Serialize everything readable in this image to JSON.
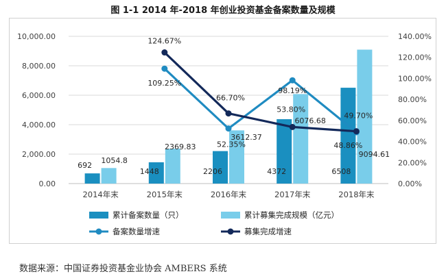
{
  "title": "图 1-1 2014 年-2018 年创业投资基金备案数量及规模",
  "source": "数据来源：中国证券投资基金业协会 AMBERS 系统",
  "colors": {
    "count_bar": "#1a8fc0",
    "scale_bar": "#79cdea",
    "count_growth": "#1f8bc1",
    "scale_growth": "#13295a",
    "grid": "#d9d9d9",
    "axis": "#bfbfbf"
  },
  "chart_data": {
    "type": "bar",
    "categories": [
      "2014年末",
      "2015年末",
      "2016年末",
      "2017年末",
      "2018年末"
    ],
    "left_axis": {
      "ylim": [
        0,
        10000
      ],
      "ticks": [
        "0.00",
        "2,000.00",
        "4,000.00",
        "6,000.00",
        "8,000.00",
        "10,000.00"
      ]
    },
    "right_axis": {
      "ylim": [
        0,
        140
      ],
      "unit": "%",
      "ticks": [
        "0.00%",
        "20.00%",
        "40.00%",
        "60.00%",
        "80.00%",
        "100.00%",
        "120.00%",
        "140.00%"
      ]
    },
    "legend_position": "bottom",
    "series": [
      {
        "name": "累计备案数量（只）",
        "type": "bar",
        "axis": "left",
        "values": [
          692,
          1448,
          2206,
          4372,
          6508
        ],
        "labels": [
          "692",
          "1448",
          "2206",
          "4372",
          "6508"
        ]
      },
      {
        "name": "累计募集完成规模（亿元）",
        "type": "bar",
        "axis": "left",
        "values": [
          1054.8,
          2369.83,
          3612.37,
          6076.68,
          9094.61
        ],
        "labels": [
          "1054.8",
          "2369.83",
          "3612.37",
          "6076.68",
          "9094.61"
        ]
      },
      {
        "name": "备案数量增速",
        "type": "line",
        "axis": "right",
        "x": [
          "2015年末",
          "2016年末",
          "2017年末",
          "2018年末"
        ],
        "values": [
          109.25,
          52.35,
          98.19,
          48.86
        ],
        "labels": [
          "109.25%",
          "52.35%",
          "98.19%",
          "48.86%"
        ]
      },
      {
        "name": "募集完成增速",
        "type": "line",
        "axis": "right",
        "x": [
          "2015年末",
          "2016年末",
          "2017年末",
          "2018年末"
        ],
        "values": [
          124.67,
          66.7,
          53.8,
          49.7
        ],
        "labels": [
          "124.67%",
          "66.70%",
          "53.80%",
          "49.70%"
        ]
      }
    ]
  }
}
